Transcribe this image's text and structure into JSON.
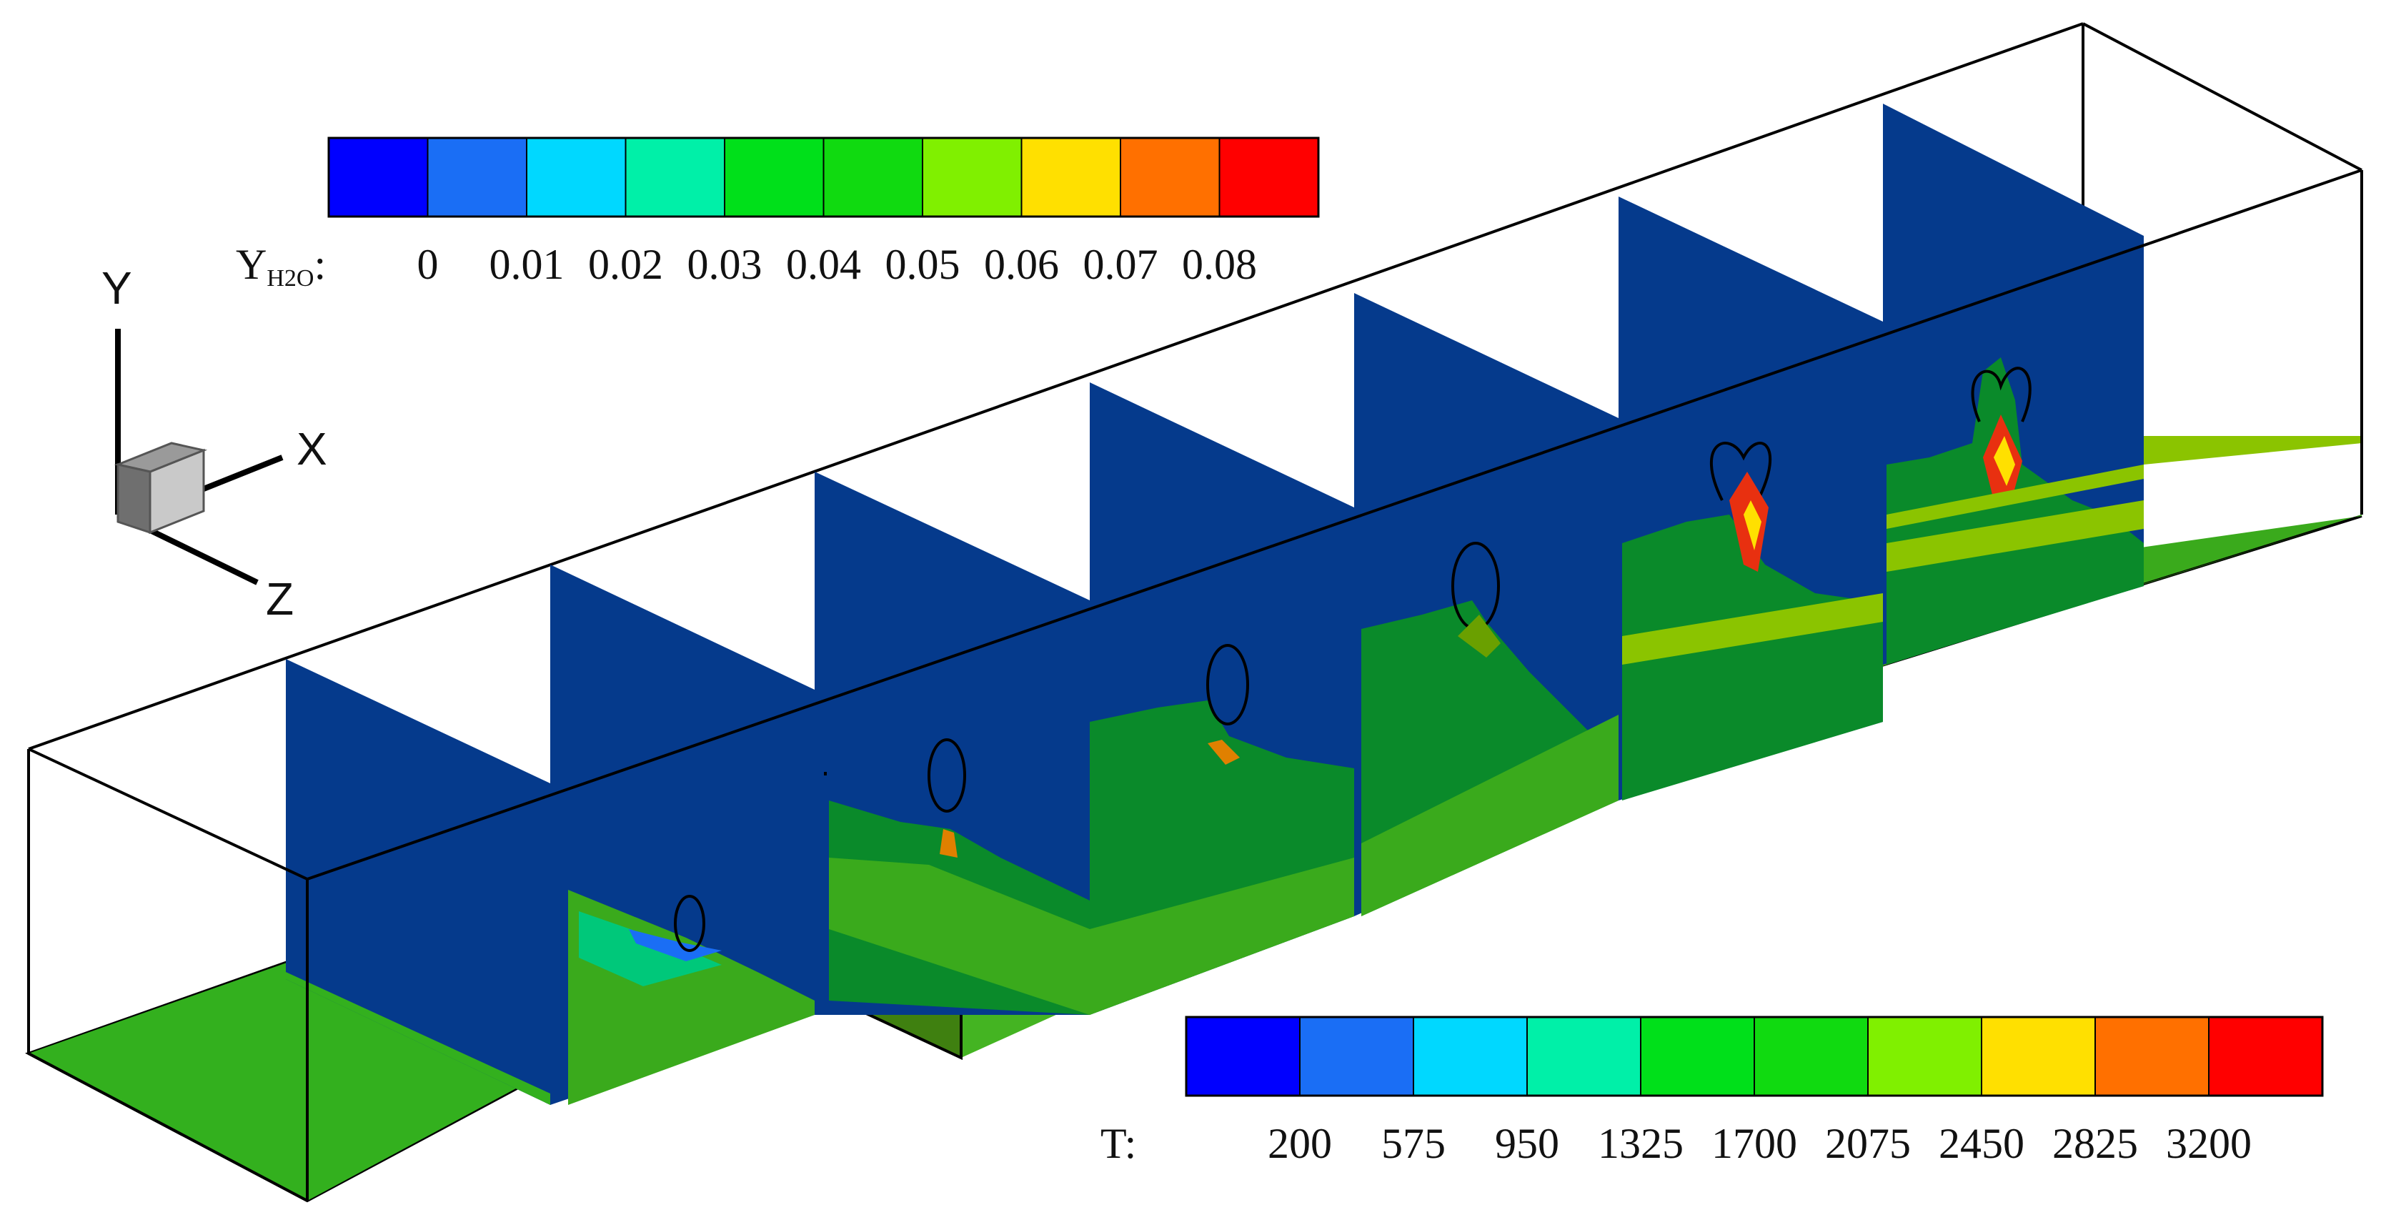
{
  "colorbar_h2o": {
    "var_main": "Y",
    "var_sub": "H2O",
    "colon": ":",
    "ticks": [
      "0",
      "0.01",
      "0.02",
      "0.03",
      "0.04",
      "0.05",
      "0.06",
      "0.07",
      "0.08"
    ],
    "colors": [
      "#0000ff",
      "#1a6ef5",
      "#00d8ff",
      "#00f0a8",
      "#00e01a",
      "#10da10",
      "#80f000",
      "#ffe000",
      "#ff7000",
      "#ff0000"
    ]
  },
  "colorbar_t": {
    "var": "T:",
    "ticks": [
      "200",
      "575",
      "950",
      "1325",
      "1700",
      "2075",
      "2450",
      "2825",
      "3200"
    ],
    "colors": [
      "#0000ff",
      "#1a6ef5",
      "#00d8ff",
      "#00f0a8",
      "#00e01a",
      "#10da10",
      "#80f000",
      "#ffe000",
      "#ff7000",
      "#ff0000"
    ]
  },
  "axes_triad": {
    "y": "Y",
    "x": "X",
    "z": "Z"
  },
  "colors": {
    "blue_plane": "#053a8c",
    "floor_green": "#3aaa1c",
    "mid_green": "#0a8a2a",
    "yellow_green": "#8bc400",
    "hot_orange": "#e08000",
    "hot_red": "#e83010"
  }
}
